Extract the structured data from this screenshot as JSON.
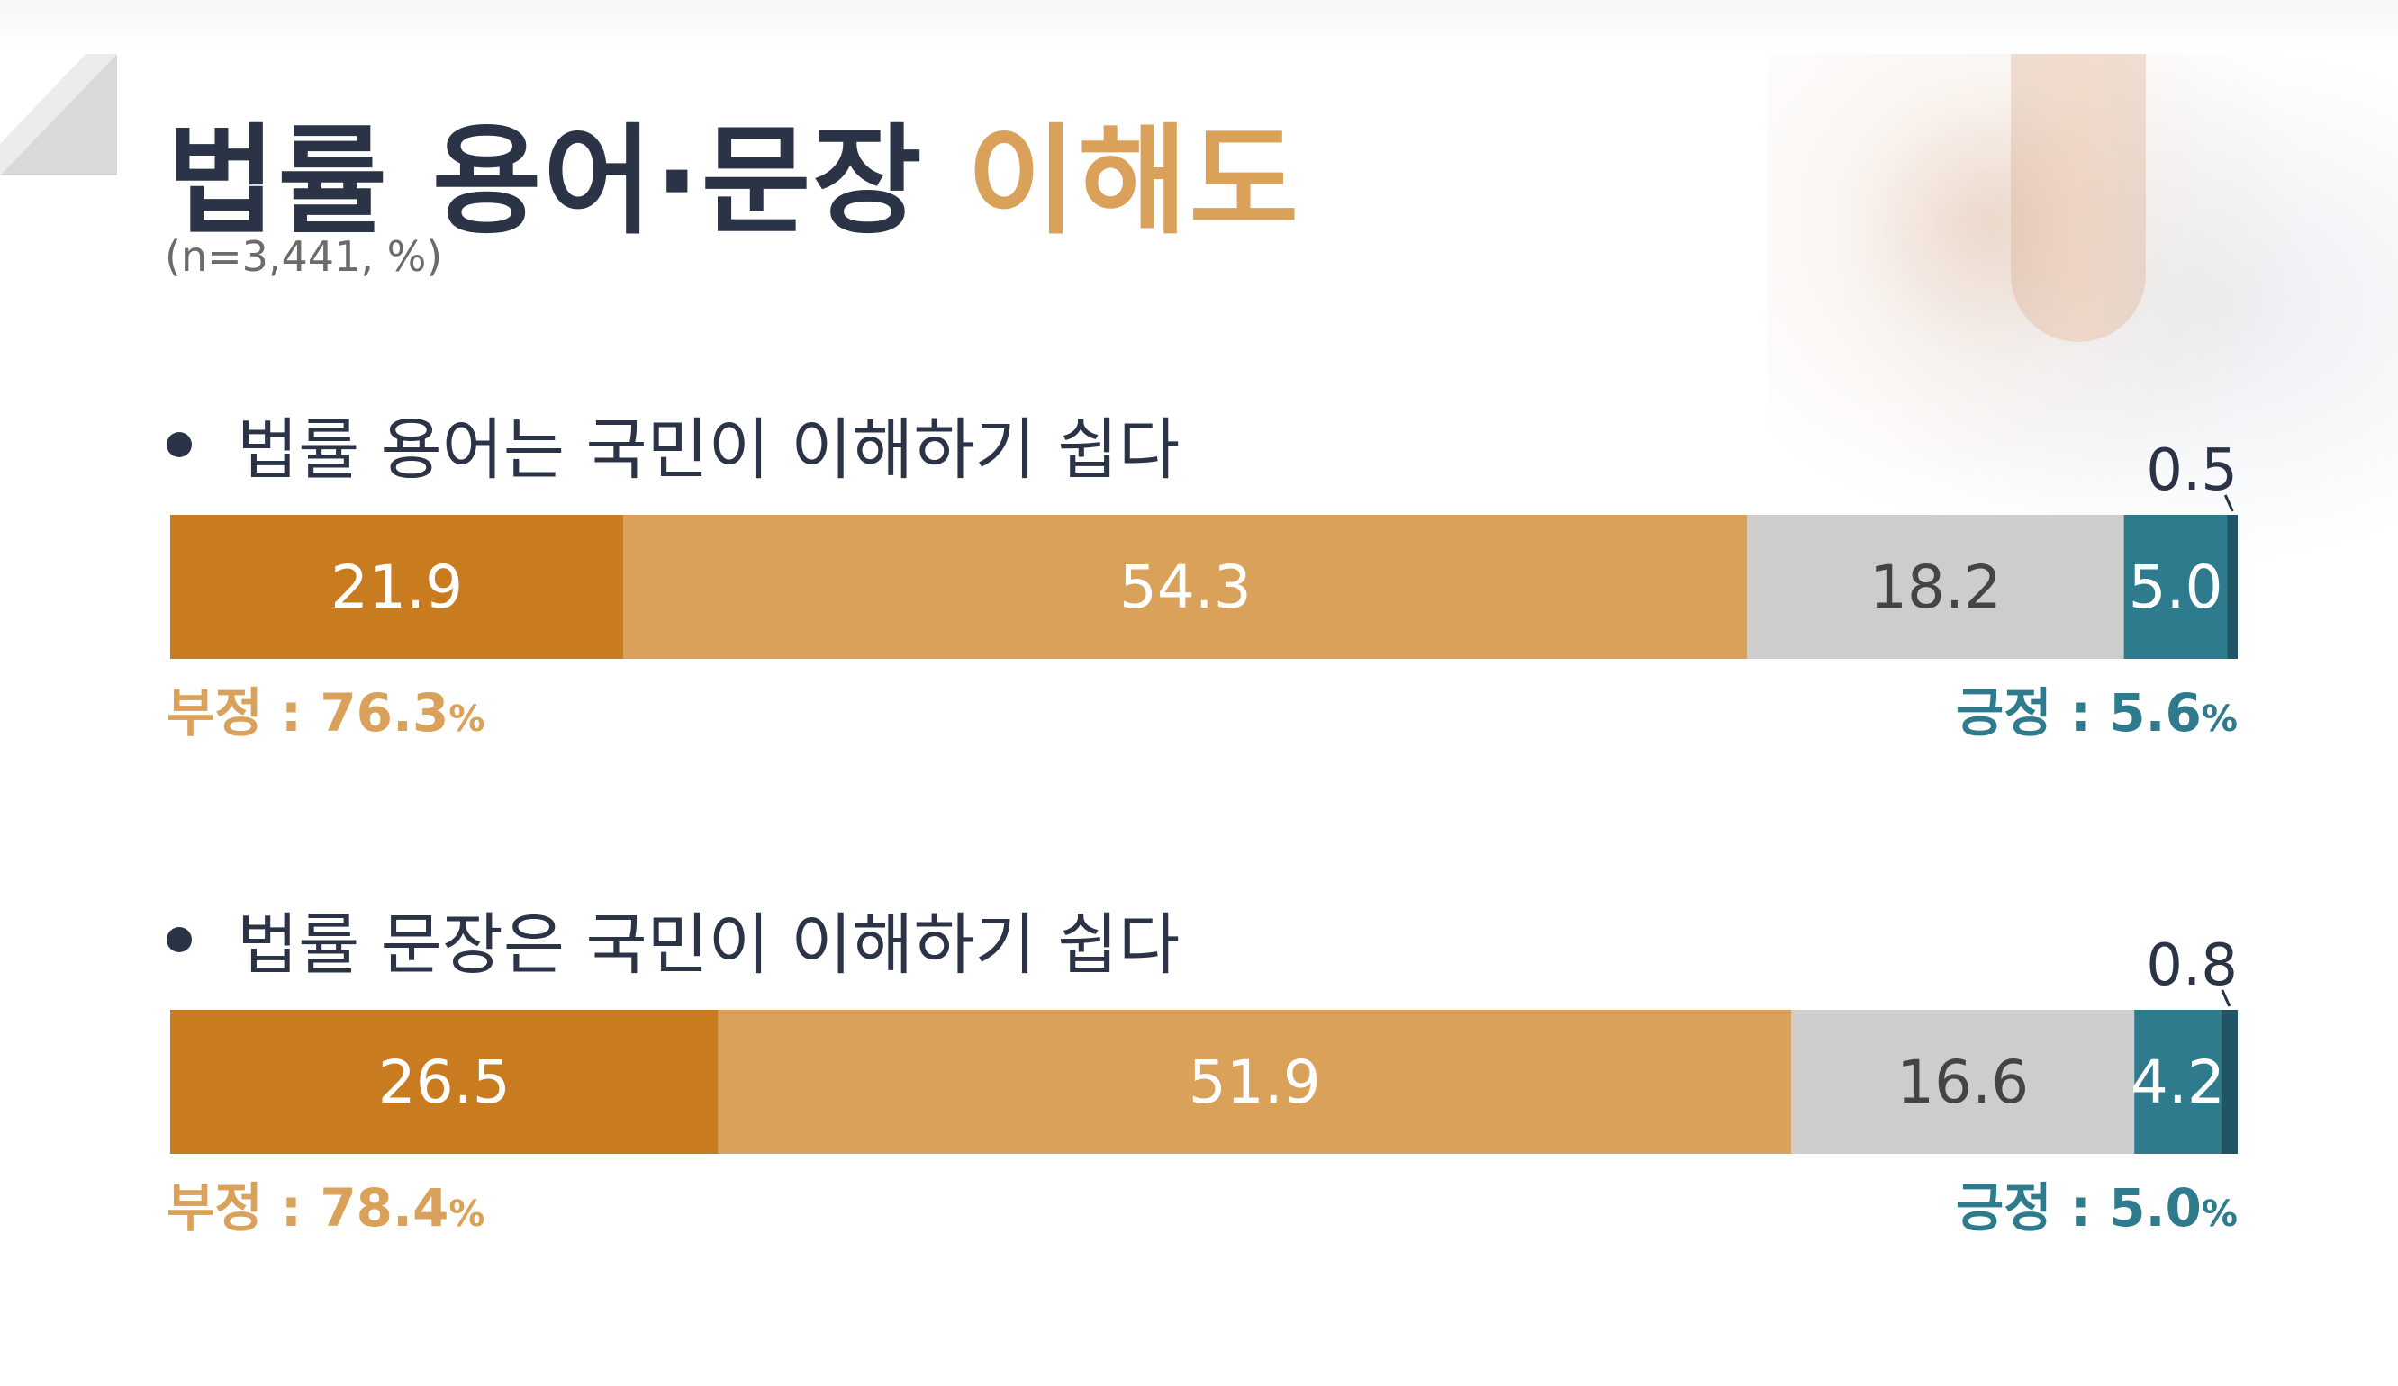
{
  "header": {
    "title_main": "법률 용어·문장",
    "title_accent": "이해도",
    "subtitle": "(n=3,441, %)"
  },
  "colors": {
    "very_negative": "#c97b20",
    "negative": "#d9a15a",
    "neutral": "#cfcdcc",
    "positive": "#2e7b8e",
    "very_positive": "#1f5565",
    "title": "#2b3346"
  },
  "chart_data": [
    {
      "type": "bar",
      "orientation": "horizontal-stacked",
      "title": "법률 용어는 국민이 이해하기 쉽다",
      "values": [
        21.9,
        54.3,
        18.2,
        5.0,
        0.5
      ],
      "labels": [
        "21.9",
        "54.3",
        "18.2",
        "5.0",
        "0.5"
      ],
      "summary_negative": {
        "label": "부정 : ",
        "value": "76.3",
        "unit": "%"
      },
      "summary_positive": {
        "label": "긍정 : ",
        "value": "5.6",
        "unit": "%"
      }
    },
    {
      "type": "bar",
      "orientation": "horizontal-stacked",
      "title": "법률 문장은 국민이 이해하기 쉽다",
      "values": [
        26.5,
        51.9,
        16.6,
        4.2,
        0.8
      ],
      "labels": [
        "26.5",
        "51.9",
        "16.6",
        "4.2",
        "0.8"
      ],
      "summary_negative": {
        "label": "부정 : ",
        "value": "78.4",
        "unit": "%"
      },
      "summary_positive": {
        "label": "긍정 : ",
        "value": "5.0",
        "unit": "%"
      }
    }
  ]
}
